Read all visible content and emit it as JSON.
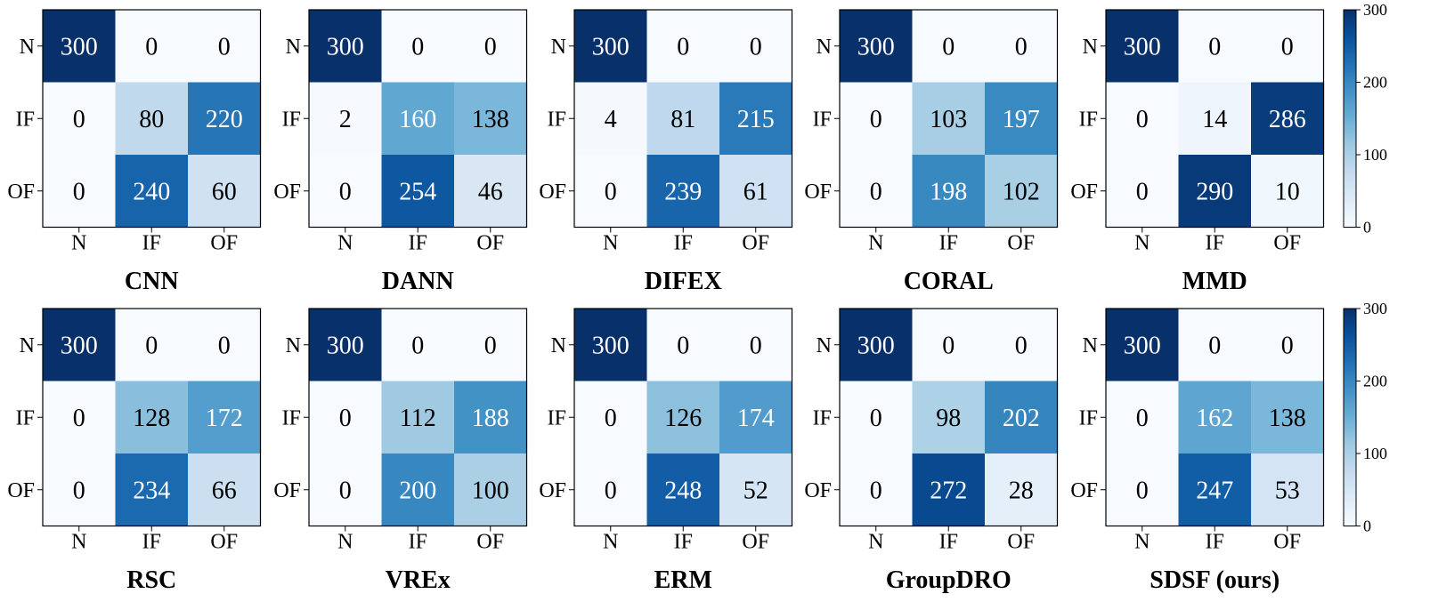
{
  "chart_data": {
    "type": "heatmap",
    "colormap": "Blues",
    "colors": {
      "low": "#f7fbff",
      "high": "#08306b",
      "frame": "#000000",
      "dark_text": "#000000",
      "light_text": "#ffffff"
    },
    "labels": [
      "N",
      "IF",
      "OF"
    ],
    "colorbar": {
      "vmin": 0,
      "vmax": 300,
      "ticks": [
        0,
        100,
        200,
        300
      ]
    },
    "panels": [
      {
        "title": "CNN",
        "matrix": [
          [
            300,
            0,
            0
          ],
          [
            0,
            80,
            220
          ],
          [
            0,
            240,
            60
          ]
        ]
      },
      {
        "title": "DANN",
        "matrix": [
          [
            300,
            0,
            0
          ],
          [
            2,
            160,
            138
          ],
          [
            0,
            254,
            46
          ]
        ]
      },
      {
        "title": "DIFEX",
        "matrix": [
          [
            300,
            0,
            0
          ],
          [
            4,
            81,
            215
          ],
          [
            0,
            239,
            61
          ]
        ]
      },
      {
        "title": "CORAL",
        "matrix": [
          [
            300,
            0,
            0
          ],
          [
            0,
            103,
            197
          ],
          [
            0,
            198,
            102
          ]
        ]
      },
      {
        "title": "MMD",
        "matrix": [
          [
            300,
            0,
            0
          ],
          [
            0,
            14,
            286
          ],
          [
            0,
            290,
            10
          ]
        ]
      },
      {
        "title": "RSC",
        "matrix": [
          [
            300,
            0,
            0
          ],
          [
            0,
            128,
            172
          ],
          [
            0,
            234,
            66
          ]
        ]
      },
      {
        "title": "VREx",
        "matrix": [
          [
            300,
            0,
            0
          ],
          [
            0,
            112,
            188
          ],
          [
            0,
            200,
            100
          ]
        ]
      },
      {
        "title": "ERM",
        "matrix": [
          [
            300,
            0,
            0
          ],
          [
            0,
            126,
            174
          ],
          [
            0,
            248,
            52
          ]
        ]
      },
      {
        "title": "GroupDRO",
        "matrix": [
          [
            300,
            0,
            0
          ],
          [
            0,
            98,
            202
          ],
          [
            0,
            272,
            28
          ]
        ]
      },
      {
        "title": "SDSF (ours)",
        "matrix": [
          [
            300,
            0,
            0
          ],
          [
            0,
            162,
            138
          ],
          [
            0,
            247,
            53
          ]
        ]
      }
    ]
  }
}
